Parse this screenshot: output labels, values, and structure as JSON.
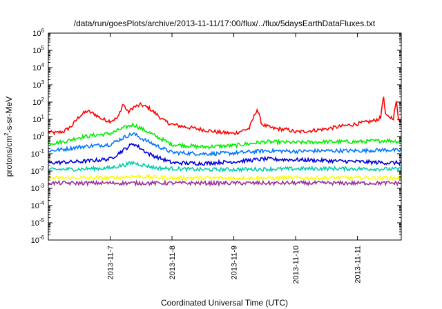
{
  "chart_data": {
    "type": "line",
    "title": "/data/run/goesPlots/archive/2013-11-11/17:00/flux/../flux/5daysEarthDataFluxes.txt",
    "xlabel": "Coordinated Universal Time (UTC)",
    "ylabel": {
      "base": "protons/cm",
      "sup": "2",
      "rest": "-s-sr-MeV"
    },
    "yscale": "log",
    "ylim": [
      1e-06,
      1000000.0
    ],
    "y_ticks": [
      {
        "exp": -6,
        "base": "10",
        "sup": "-6"
      },
      {
        "exp": -5,
        "base": "10",
        "sup": "-5"
      },
      {
        "exp": -4,
        "base": "10",
        "sup": "-4"
      },
      {
        "exp": -3,
        "base": "10",
        "sup": "-3"
      },
      {
        "exp": -2,
        "base": "10",
        "sup": "-2"
      },
      {
        "exp": -1,
        "base": "10",
        "sup": "-1"
      },
      {
        "exp": 0,
        "base": "10",
        "sup": "0"
      },
      {
        "exp": 1,
        "base": "10",
        "sup": "1"
      },
      {
        "exp": 2,
        "base": "10",
        "sup": "2"
      },
      {
        "exp": 3,
        "base": "10",
        "sup": "3"
      },
      {
        "exp": 4,
        "base": "10",
        "sup": "4"
      },
      {
        "exp": 5,
        "base": "10",
        "sup": "5"
      },
      {
        "exp": 6,
        "base": "10",
        "sup": "6"
      }
    ],
    "xlim": [
      "2013-11-06T00:00",
      "2013-11-11T17:00"
    ],
    "x_ticks": [
      "2013-11-7",
      "2013-11-8",
      "2013-11-9",
      "2013-11-10",
      "2013-11-11"
    ],
    "x_tick_dates": [
      "2013-11-07",
      "2013-11-08",
      "2013-11-09",
      "2013-11-10",
      "2013-11-11"
    ],
    "grid": false,
    "series": [
      {
        "color": "#ff0000",
        "points": [
          [
            "2013-11-06T00:00",
            1.8
          ],
          [
            "2013-11-06T03:00",
            1.6
          ],
          [
            "2013-11-06T06:00",
            2.0
          ],
          [
            "2013-11-06T09:00",
            4.0
          ],
          [
            "2013-11-06T12:00",
            15
          ],
          [
            "2013-11-06T15:00",
            30
          ],
          [
            "2013-11-06T18:00",
            20
          ],
          [
            "2013-11-06T21:00",
            10
          ],
          [
            "2013-11-07T00:00",
            8
          ],
          [
            "2013-11-07T03:00",
            12
          ],
          [
            "2013-11-07T05:00",
            80
          ],
          [
            "2013-11-07T07:00",
            25
          ],
          [
            "2013-11-07T09:00",
            50
          ],
          [
            "2013-11-07T12:00",
            70
          ],
          [
            "2013-11-07T15:00",
            45
          ],
          [
            "2013-11-07T18:00",
            20
          ],
          [
            "2013-11-07T21:00",
            8
          ],
          [
            "2013-11-08T00:00",
            5
          ],
          [
            "2013-11-08T06:00",
            3.5
          ],
          [
            "2013-11-08T12:00",
            2.5
          ],
          [
            "2013-11-08T18:00",
            1.8
          ],
          [
            "2013-11-09T00:00",
            1.5
          ],
          [
            "2013-11-09T06:00",
            3.0
          ],
          [
            "2013-11-09T09:00",
            40
          ],
          [
            "2013-11-09T11:00",
            5
          ],
          [
            "2013-11-09T15:00",
            3
          ],
          [
            "2013-11-09T21:00",
            2.5
          ],
          [
            "2013-11-10T00:00",
            1.8
          ],
          [
            "2013-11-10T06:00",
            2.2
          ],
          [
            "2013-11-10T12:00",
            2.8
          ],
          [
            "2013-11-10T18:00",
            4.0
          ],
          [
            "2013-11-11T00:00",
            5.5
          ],
          [
            "2013-11-11T06:00",
            8.0
          ],
          [
            "2013-11-11T09:00",
            12
          ],
          [
            "2013-11-11T10:00",
            250
          ],
          [
            "2013-11-11T11:00",
            15
          ],
          [
            "2013-11-11T14:00",
            12
          ],
          [
            "2013-11-11T15:00",
            120
          ],
          [
            "2013-11-11T16:00",
            10
          ],
          [
            "2013-11-11T17:00",
            8
          ]
        ]
      },
      {
        "color": "#00ee00",
        "points": [
          [
            "2013-11-06T00:00",
            0.4
          ],
          [
            "2013-11-06T06:00",
            0.5
          ],
          [
            "2013-11-06T12:00",
            0.9
          ],
          [
            "2013-11-06T18:00",
            1.2
          ],
          [
            "2013-11-07T00:00",
            1.5
          ],
          [
            "2013-11-07T06:00",
            3.5
          ],
          [
            "2013-11-07T09:00",
            5.0
          ],
          [
            "2013-11-07T12:00",
            3.0
          ],
          [
            "2013-11-07T18:00",
            1.0
          ],
          [
            "2013-11-08T00:00",
            0.35
          ],
          [
            "2013-11-08T12:00",
            0.25
          ],
          [
            "2013-11-09T00:00",
            0.3
          ],
          [
            "2013-11-09T12:00",
            0.5
          ],
          [
            "2013-11-10T00:00",
            0.45
          ],
          [
            "2013-11-10T12:00",
            0.5
          ],
          [
            "2013-11-11T00:00",
            0.5
          ],
          [
            "2013-11-11T12:00",
            0.6
          ],
          [
            "2013-11-11T17:00",
            0.5
          ]
        ]
      },
      {
        "color": "#0077ff",
        "points": [
          [
            "2013-11-06T00:00",
            0.15
          ],
          [
            "2013-11-06T06:00",
            0.18
          ],
          [
            "2013-11-06T12:00",
            0.25
          ],
          [
            "2013-11-06T18:00",
            0.3
          ],
          [
            "2013-11-07T00:00",
            0.35
          ],
          [
            "2013-11-07T06:00",
            1.0
          ],
          [
            "2013-11-07T09:00",
            1.5
          ],
          [
            "2013-11-07T12:00",
            0.8
          ],
          [
            "2013-11-07T18:00",
            0.3
          ],
          [
            "2013-11-08T00:00",
            0.12
          ],
          [
            "2013-11-08T12:00",
            0.1
          ],
          [
            "2013-11-09T00:00",
            0.11
          ],
          [
            "2013-11-09T12:00",
            0.15
          ],
          [
            "2013-11-10T00:00",
            0.14
          ],
          [
            "2013-11-10T12:00",
            0.15
          ],
          [
            "2013-11-11T00:00",
            0.15
          ],
          [
            "2013-11-11T12:00",
            0.17
          ],
          [
            "2013-11-11T17:00",
            0.15
          ]
        ]
      },
      {
        "color": "#0000dd",
        "points": [
          [
            "2013-11-06T00:00",
            0.03
          ],
          [
            "2013-11-06T12:00",
            0.035
          ],
          [
            "2013-11-07T00:00",
            0.05
          ],
          [
            "2013-11-07T06:00",
            0.2
          ],
          [
            "2013-11-07T09:00",
            0.4
          ],
          [
            "2013-11-07T15:00",
            0.1
          ],
          [
            "2013-11-08T00:00",
            0.03
          ],
          [
            "2013-11-08T12:00",
            0.028
          ],
          [
            "2013-11-09T00:00",
            0.035
          ],
          [
            "2013-11-09T12:00",
            0.05
          ],
          [
            "2013-11-10T00:00",
            0.045
          ],
          [
            "2013-11-10T12:00",
            0.04
          ],
          [
            "2013-11-11T00:00",
            0.035
          ],
          [
            "2013-11-11T12:00",
            0.03
          ],
          [
            "2013-11-11T17:00",
            0.03
          ]
        ]
      },
      {
        "color": "#00ccaa",
        "points": [
          [
            "2013-11-06T00:00",
            0.012
          ],
          [
            "2013-11-06T12:00",
            0.013
          ],
          [
            "2013-11-07T00:00",
            0.015
          ],
          [
            "2013-11-07T09:00",
            0.03
          ],
          [
            "2013-11-07T18:00",
            0.015
          ],
          [
            "2013-11-08T12:00",
            0.012
          ],
          [
            "2013-11-09T12:00",
            0.013
          ],
          [
            "2013-11-10T12:00",
            0.014
          ],
          [
            "2013-11-11T12:00",
            0.013
          ],
          [
            "2013-11-11T17:00",
            0.013
          ]
        ]
      },
      {
        "color": "#ffff00",
        "points": [
          [
            "2013-11-06T00:00",
            0.004
          ],
          [
            "2013-11-07T00:00",
            0.004
          ],
          [
            "2013-11-07T09:00",
            0.005
          ],
          [
            "2013-11-08T00:00",
            0.004
          ],
          [
            "2013-11-09T00:00",
            0.004
          ],
          [
            "2013-11-10T00:00",
            0.004
          ],
          [
            "2013-11-11T00:00",
            0.004
          ],
          [
            "2013-11-11T17:00",
            0.004
          ]
        ]
      },
      {
        "color": "#993399",
        "points": [
          [
            "2013-11-06T00:00",
            0.002
          ],
          [
            "2013-11-07T00:00",
            0.002
          ],
          [
            "2013-11-08T00:00",
            0.002
          ],
          [
            "2013-11-09T00:00",
            0.002
          ],
          [
            "2013-11-10T00:00",
            0.002
          ],
          [
            "2013-11-11T00:00",
            0.002
          ],
          [
            "2013-11-11T17:00",
            0.002
          ]
        ]
      }
    ]
  }
}
